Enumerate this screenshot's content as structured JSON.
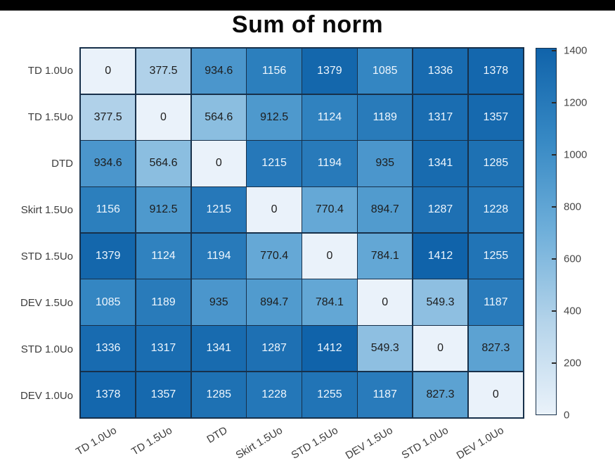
{
  "title": "Sum of norm",
  "chart_data": {
    "type": "heatmap",
    "title": "Sum of norm",
    "row_labels": [
      "TD 1.0Uo",
      "TD 1.5Uo",
      "DTD",
      "Skirt 1.5Uo",
      "STD 1.5Uo",
      "DEV 1.5Uo",
      "STD 1.0Uo",
      "DEV 1.0Uo"
    ],
    "col_labels": [
      "TD 1.0Uo",
      "TD 1.5Uo",
      "DTD",
      "Skirt 1.5Uo",
      "STD 1.5Uo",
      "DEV 1.5Uo",
      "STD 1.0Uo",
      "DEV 1.0Uo"
    ],
    "values": [
      [
        0,
        377.5,
        934.6,
        1156,
        1379,
        1085,
        1336,
        1378
      ],
      [
        377.5,
        0,
        564.6,
        912.5,
        1124,
        1189,
        1317,
        1357
      ],
      [
        934.6,
        564.6,
        0,
        1215,
        1194,
        935,
        1341,
        1285
      ],
      [
        1156,
        912.5,
        1215,
        0,
        770.4,
        894.7,
        1287,
        1228
      ],
      [
        1379,
        1124,
        1194,
        770.4,
        0,
        784.1,
        1412,
        1255
      ],
      [
        1085,
        1189,
        935,
        894.7,
        784.1,
        0,
        549.3,
        1187
      ],
      [
        1336,
        1317,
        1341,
        1287,
        1412,
        549.3,
        0,
        827.3
      ],
      [
        1378,
        1357,
        1285,
        1228,
        1255,
        1187,
        827.3,
        0
      ]
    ],
    "colorbar": {
      "min": 0,
      "max": 1412,
      "ticks": [
        0,
        200,
        400,
        600,
        800,
        1000,
        1200,
        1400
      ],
      "position": "right"
    },
    "colormap": [
      "#EAF2FA",
      "#B5D4EA",
      "#6FAFDA",
      "#3789C4",
      "#1063AA"
    ],
    "cell_text_light_threshold": 1000,
    "cell_text_dark": "#1d1d1d",
    "cell_text_light": "#eef6fd",
    "grid_line_color": "#17304a",
    "axis_label_color": "#3d3d3d"
  }
}
